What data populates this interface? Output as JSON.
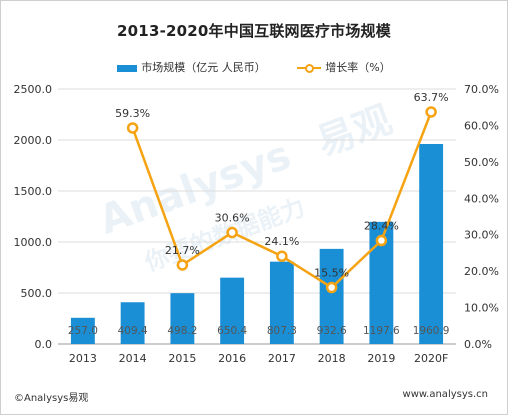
{
  "title": "2013-2020年中国互联网医疗市场规模",
  "legend": {
    "bar_label": "市场规模（亿元 人民币）",
    "line_label": "增长率（%）"
  },
  "footer": {
    "source": "©Analysys易观",
    "url": "www.analysys.cn"
  },
  "watermark": {
    "brand_en": "Analysys",
    "brand_cn": "易观",
    "slogan": "你要的数据能力"
  },
  "colors": {
    "bar": "#1a8fd6",
    "line": "#f5a312",
    "grid": "#dcdcdc",
    "text": "#333333"
  },
  "chart_data": {
    "type": "bar",
    "categories": [
      "2013",
      "2014",
      "2015",
      "2016",
      "2017",
      "2018",
      "2019",
      "2020F"
    ],
    "series": [
      {
        "name": "市场规模（亿元 人民币）",
        "type": "bar",
        "axis": "left",
        "values": [
          257.0,
          409.4,
          498.2,
          650.4,
          807.3,
          932.6,
          1197.6,
          1960.9
        ],
        "labels": [
          "257.0",
          "409.4",
          "498.2",
          "650.4",
          "807.3",
          "932.6",
          "1197.6",
          "1960.9"
        ]
      },
      {
        "name": "增长率（%）",
        "type": "line",
        "axis": "right",
        "values": [
          null,
          59.3,
          21.7,
          30.6,
          24.1,
          15.5,
          28.4,
          63.7
        ],
        "labels": [
          "",
          "59.3%",
          "21.7%",
          "30.6%",
          "24.1%",
          "15.5%",
          "28.4%",
          "63.7%"
        ]
      }
    ],
    "y_left": {
      "ylim": [
        0,
        2500
      ],
      "ticks": [
        0,
        500,
        1000,
        1500,
        2000,
        2500
      ],
      "tick_labels": [
        "0.0",
        "500.0",
        "1000.0",
        "1500.0",
        "2000.0",
        "2500.0"
      ]
    },
    "y_right": {
      "ylim": [
        0,
        70
      ],
      "ticks": [
        0,
        10,
        20,
        30,
        40,
        50,
        60,
        70
      ],
      "tick_labels": [
        "0.0%",
        "10.0%",
        "20.0%",
        "30.0%",
        "40.0%",
        "50.0%",
        "60.0%",
        "70.0%"
      ]
    },
    "grid": true,
    "legend_position": "top"
  }
}
